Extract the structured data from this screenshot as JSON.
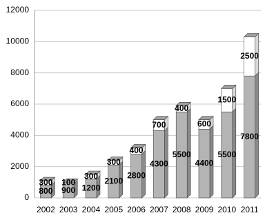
{
  "chart_data": {
    "type": "bar",
    "stacked": true,
    "categories": [
      "2002",
      "2003",
      "2004",
      "2005",
      "2006",
      "2007",
      "2008",
      "2009",
      "2010",
      "2011"
    ],
    "series": [
      {
        "color": "#b4b4b4",
        "values": [
          800,
          900,
          1200,
          2100,
          2800,
          4300,
          5500,
          4400,
          5500,
          7800
        ]
      },
      {
        "color": "#ffffff",
        "values": [
          300,
          100,
          300,
          300,
          400,
          700,
          400,
          600,
          1500,
          2500
        ]
      }
    ],
    "ylim": [
      0,
      12000
    ],
    "yticks": [
      0,
      2000,
      4000,
      6000,
      8000,
      10000,
      12000
    ],
    "grid": true
  }
}
